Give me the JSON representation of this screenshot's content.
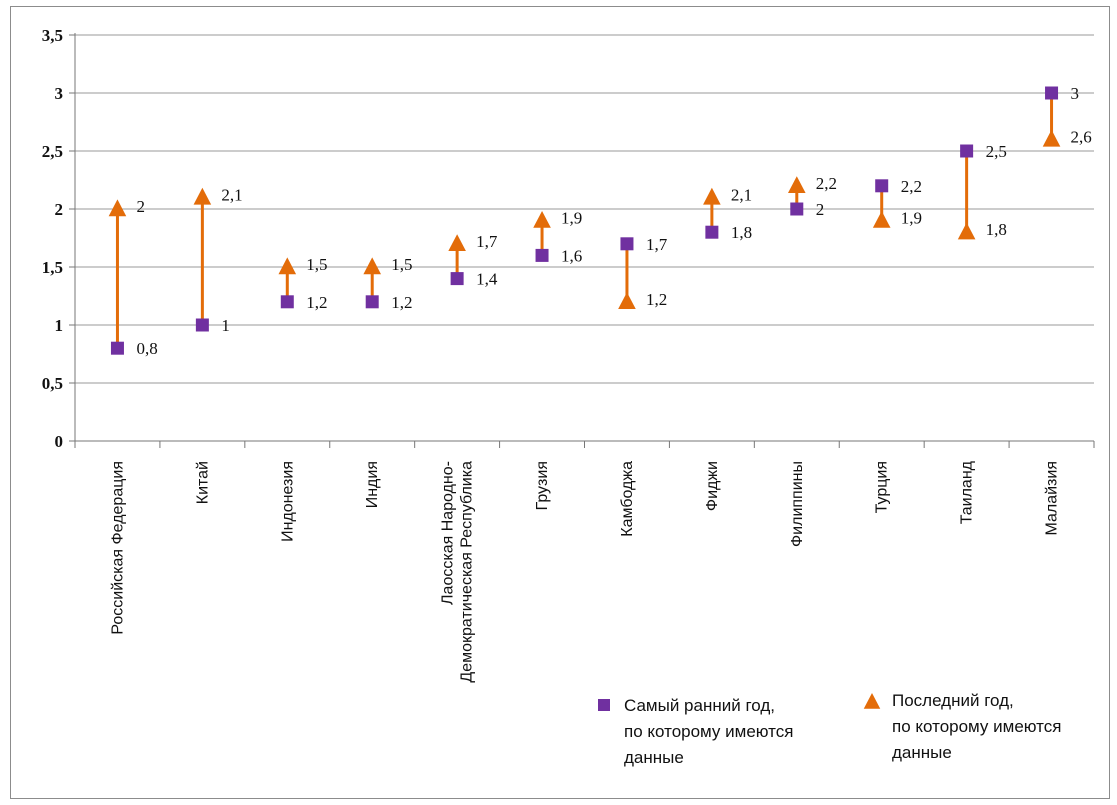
{
  "chart_data": {
    "type": "scatter",
    "ylim": [
      0,
      3.5
    ],
    "yticks": [
      "0",
      "0,5",
      "1",
      "1,5",
      "2",
      "2,5",
      "3",
      "3,5"
    ],
    "ytick_values": [
      0,
      0.5,
      1,
      1.5,
      2,
      2.5,
      3,
      3.5
    ],
    "grid": true,
    "categories": [
      [
        "Российская Федерация"
      ],
      [
        "Китай"
      ],
      [
        "Индонезия"
      ],
      [
        "Индия"
      ],
      [
        "Лаосская Народно-",
        "Демократическая Республика"
      ],
      [
        "Грузия"
      ],
      [
        "Камбоджа"
      ],
      [
        "Фиджи"
      ],
      [
        "Филиппины"
      ],
      [
        "Турция"
      ],
      [
        "Таиланд"
      ],
      [
        "Малайзия"
      ]
    ],
    "series": [
      {
        "marker": "square",
        "color": "#7030a0",
        "values": [
          0.8,
          1,
          1.2,
          1.2,
          1.4,
          1.6,
          1.7,
          1.8,
          2,
          2.2,
          2.5,
          3
        ],
        "labels": [
          "0,8",
          "1",
          "1,2",
          "1,2",
          "1,4",
          "1,6",
          "1,7",
          "1,8",
          "2",
          "2,2",
          "2,5",
          "3"
        ]
      },
      {
        "marker": "triangle",
        "color": "#e36c09",
        "values": [
          2,
          2.1,
          1.5,
          1.5,
          1.7,
          1.9,
          1.2,
          2.1,
          2.2,
          1.9,
          1.8,
          2.6
        ],
        "labels": [
          "2",
          "2,1",
          "1,5",
          "1,5",
          "1,7",
          "1,9",
          "1,2",
          "2,1",
          "2,2",
          "1,9",
          "1,8",
          "2,6"
        ]
      }
    ],
    "legend": {
      "placement": "bottom-right",
      "items": [
        {
          "marker": "square",
          "color": "#7030a0",
          "lines": [
            "Самый ранний год,",
            "по которому имеются",
            "данные"
          ]
        },
        {
          "marker": "triangle",
          "color": "#e36c09",
          "lines": [
            "Последний год,",
            "по которому имеются",
            "данные"
          ]
        }
      ]
    },
    "connector_color": "#e36c09"
  }
}
